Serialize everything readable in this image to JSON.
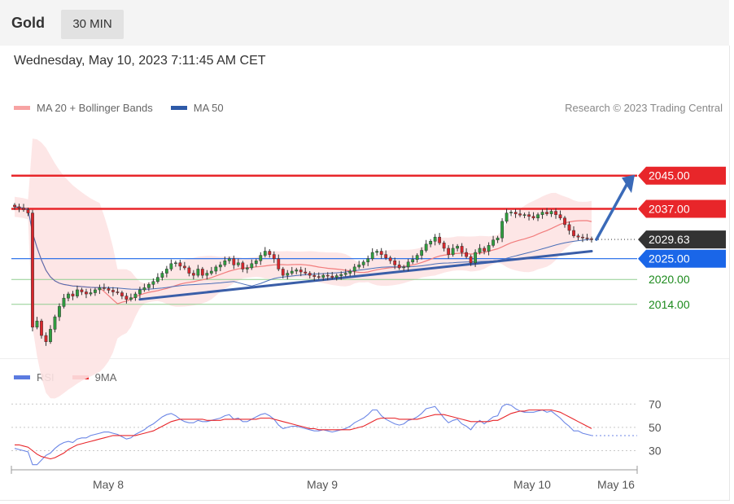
{
  "header": {
    "instrument": "Gold",
    "timeframe": "30 MIN"
  },
  "datetime": "Wednesday, May 10, 2023 7:11:45 AM CET",
  "legend_main": [
    {
      "label": "MA 20 + Bollinger Bands",
      "color": "#f47c7c"
    },
    {
      "label": "MA 50",
      "color": "#2e5aa8"
    }
  ],
  "credit": "Research © 2023 Trading Central",
  "legend_rsi": [
    {
      "label": "RSI",
      "color": "#5b7be0"
    },
    {
      "label": "9MA",
      "color": "#e8262a"
    }
  ],
  "chart_data": [
    {
      "type": "candlestick",
      "title": "Gold",
      "ylim": [
        2002,
        2052
      ],
      "x_ticks": [
        "May 8",
        "May 9",
        "May 10",
        "May 16"
      ],
      "last_price": 2029.63,
      "levels": [
        {
          "label": "2045.00",
          "value": 2045.0,
          "color": "#e8262a",
          "style": "resistance"
        },
        {
          "label": "2037.00",
          "value": 2037.0,
          "color": "#e8262a",
          "style": "resistance"
        },
        {
          "label": "2029.63",
          "value": 2029.63,
          "color": "#333333",
          "style": "last"
        },
        {
          "label": "2025.00",
          "value": 2025.0,
          "color": "#1a66e8",
          "style": "pivot"
        },
        {
          "label": "2020.00",
          "value": 2020.0,
          "color": "#1d8a1d",
          "style": "support"
        },
        {
          "label": "2014.00",
          "value": 2014.0,
          "color": "#1d8a1d",
          "style": "support"
        }
      ],
      "series": [
        {
          "name": "Close",
          "values": [
            2037.5,
            2037.2,
            2036.8,
            2036.0,
            2008.5,
            2010.0,
            2006.5,
            2005.0,
            2008.0,
            2011.0,
            2013.5,
            2015.5,
            2016.5,
            2016.0,
            2017.5,
            2017.0,
            2016.5,
            2016.8,
            2017.5,
            2018.0,
            2017.8,
            2017.4,
            2017.0,
            2016.8,
            2016.0,
            2015.2,
            2015.6,
            2016.5,
            2017.5,
            2018.0,
            2018.8,
            2019.5,
            2020.5,
            2021.5,
            2022.5,
            2023.8,
            2024.0,
            2023.2,
            2022.8,
            2021.5,
            2021.0,
            2022.5,
            2021.0,
            2021.5,
            2022.0,
            2023.0,
            2023.5,
            2024.5,
            2025.0,
            2023.5,
            2024.0,
            2022.5,
            2022.8,
            2023.8,
            2024.5,
            2025.8,
            2026.8,
            2026.0,
            2025.0,
            2022.5,
            2021.0,
            2021.5,
            2022.0,
            2022.3,
            2021.8,
            2021.5,
            2021.0,
            2020.7,
            2020.5,
            2021.0,
            2020.8,
            2020.5,
            2020.9,
            2021.2,
            2021.5,
            2022.0,
            2023.0,
            2023.5,
            2024.2,
            2025.0,
            2026.5,
            2026.8,
            2026.0,
            2025.2,
            2024.5,
            2023.5,
            2022.8,
            2023.0,
            2024.2,
            2024.8,
            2025.8,
            2027.0,
            2028.5,
            2029.2,
            2030.2,
            2028.8,
            2027.5,
            2026.0,
            2027.5,
            2028.0,
            2026.5,
            2025.5,
            2024.0,
            2026.5,
            2027.5,
            2026.8,
            2028.2,
            2029.5,
            2030.0,
            2034.0,
            2036.0,
            2036.2,
            2035.8,
            2035.5,
            2035.6,
            2035.2,
            2034.8,
            2035.6,
            2036.2,
            2035.8,
            2036.4,
            2035.6,
            2034.8,
            2033.2,
            2031.8,
            2030.5,
            2030.2,
            2030.0,
            2029.8,
            2029.63
          ]
        }
      ]
    },
    {
      "type": "line",
      "title": "RSI",
      "ylim": [
        15,
        80
      ],
      "y_ticks": [
        70,
        50,
        30
      ],
      "series": [
        {
          "name": "RSI",
          "values": [
            32,
            31,
            30,
            29,
            18,
            18,
            22,
            26,
            28,
            32,
            35,
            37,
            38,
            37,
            40,
            41,
            41,
            43,
            44,
            45,
            46,
            46,
            45,
            44,
            42,
            40,
            41,
            44,
            46,
            48,
            51,
            53,
            56,
            59,
            61,
            62,
            60,
            57,
            55,
            54,
            54,
            56,
            55,
            55,
            56,
            57,
            58,
            60,
            61,
            57,
            58,
            55,
            55,
            57,
            59,
            61,
            62,
            60,
            57,
            52,
            49,
            50,
            51,
            51,
            50,
            49,
            48,
            47,
            47,
            48,
            47,
            46,
            47,
            48,
            49,
            51,
            54,
            56,
            58,
            61,
            65,
            65,
            60,
            57,
            55,
            53,
            52,
            53,
            56,
            57,
            59,
            62,
            66,
            67,
            68,
            63,
            58,
            54,
            56,
            57,
            53,
            51,
            48,
            53,
            56,
            53,
            56,
            59,
            60,
            68,
            70,
            69,
            66,
            64,
            63,
            63,
            63,
            64,
            65,
            63,
            64,
            61,
            58,
            54,
            51,
            47,
            47,
            45,
            44,
            43
          ]
        },
        {
          "name": "9MA",
          "values": [
            35,
            35,
            34,
            33,
            30,
            27,
            25,
            24,
            23,
            24,
            26,
            28,
            31,
            33,
            35,
            36,
            37,
            38,
            39,
            40,
            41,
            42,
            43,
            43,
            43,
            43,
            43,
            43,
            44,
            45,
            46,
            47,
            49,
            51,
            53,
            55,
            56,
            57,
            57,
            57,
            57,
            57,
            57,
            56,
            56,
            56,
            56,
            57,
            57,
            57,
            57,
            57,
            57,
            57,
            57,
            58,
            58,
            58,
            57,
            56,
            55,
            54,
            53,
            52,
            51,
            50,
            49,
            49,
            48,
            48,
            48,
            48,
            48,
            48,
            48,
            48,
            49,
            50,
            51,
            53,
            55,
            57,
            58,
            58,
            58,
            58,
            57,
            57,
            57,
            57,
            57,
            58,
            59,
            60,
            61,
            61,
            61,
            60,
            59,
            58,
            57,
            56,
            55,
            55,
            55,
            55,
            55,
            56,
            56,
            58,
            60,
            62,
            63,
            64,
            64,
            65,
            65,
            65,
            65,
            65,
            65,
            64,
            63,
            61,
            59,
            57,
            55,
            53,
            51,
            49
          ]
        }
      ]
    }
  ]
}
